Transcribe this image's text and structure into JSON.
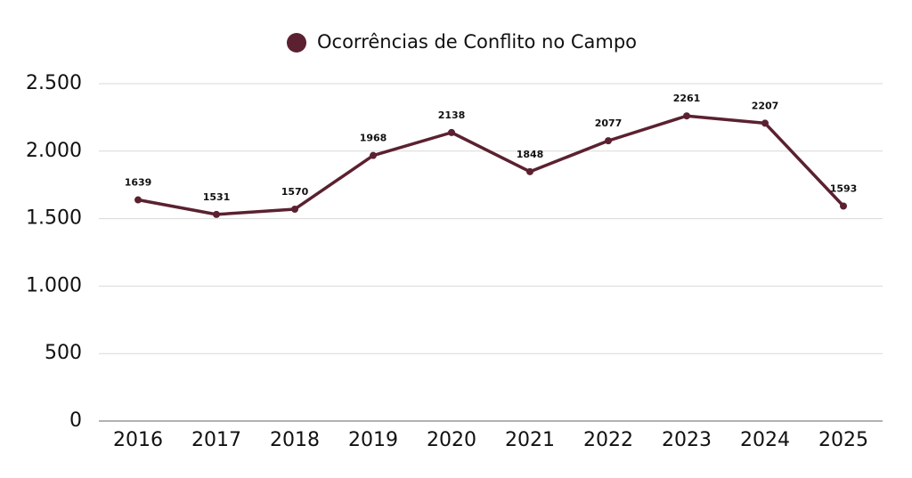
{
  "chart_data": {
    "type": "line",
    "categories": [
      "2016",
      "2017",
      "2018",
      "2019",
      "2020",
      "2021",
      "2022",
      "2023",
      "2024",
      "2025"
    ],
    "series": [
      {
        "name": "Ocorrências de Conflito no Campo",
        "color": "#5b2130",
        "values": [
          1639,
          1531,
          1570,
          1968,
          2138,
          1848,
          2077,
          2261,
          2207,
          1593
        ]
      }
    ],
    "ylim": [
      0,
      2500
    ],
    "yticks": [
      0,
      500,
      {
        "value": 1000,
        "label": "1.000"
      },
      {
        "value": 1500,
        "label": "1.500"
      },
      {
        "value": 2000,
        "label": "2.000"
      },
      {
        "value": 2500,
        "label": "2.500"
      }
    ],
    "grid": true,
    "legend": "top"
  }
}
